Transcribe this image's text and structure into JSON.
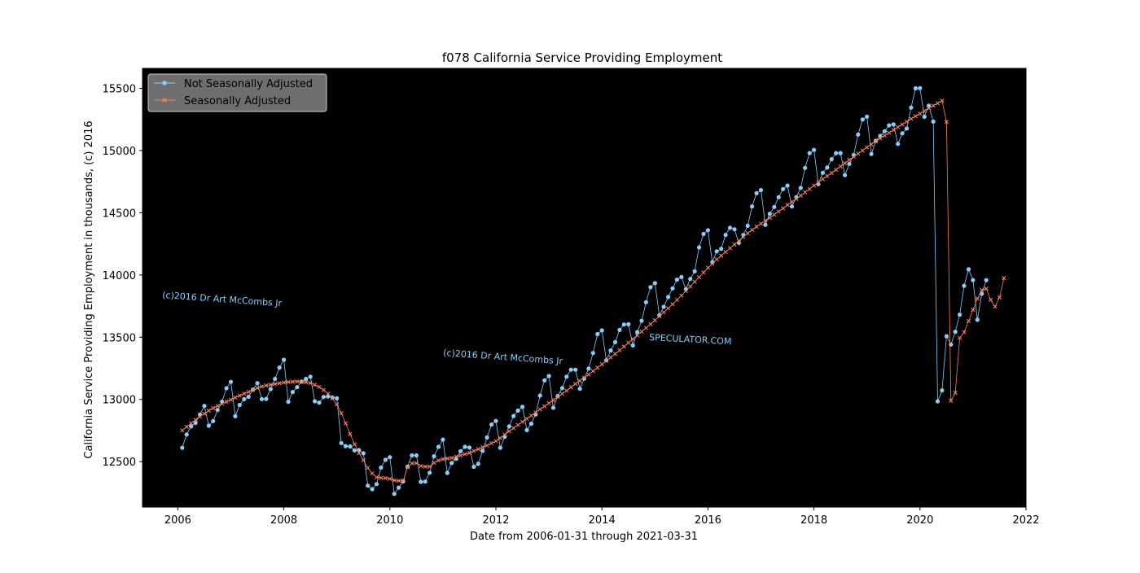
{
  "colors": {
    "plot_background": "#000000",
    "nsa": "#87cefa",
    "sa": "#fa8060",
    "legend_face": "#6e6e6e",
    "watermark": "#87cefa"
  },
  "watermarks": [
    "(c)2016 Dr Art McCombs Jr",
    "(c)2016 Dr Art McCombs Jr",
    "SPECULATOR.COM"
  ],
  "chart_data": {
    "type": "line",
    "title": "f078 California Service Providing Employment",
    "xlabel": "Date from 2006-01-31 through 2021-03-31",
    "ylabel": "California Service Providing Employment in thousands, (c) 2016",
    "x_tick_labels": [
      "2006",
      "2008",
      "2010",
      "2012",
      "2014",
      "2016",
      "2018",
      "2020",
      "2022"
    ],
    "y_tick_labels": [
      "12500",
      "13000",
      "13500",
      "14000",
      "14500",
      "15000",
      "15500"
    ],
    "xlim": [
      "2005-05",
      "2022-01"
    ],
    "ylim": [
      12135,
      15660
    ],
    "grid": false,
    "legend": "top-left",
    "x_start": "2006-01",
    "x_end": "2021-03",
    "series": [
      {
        "name": "Not Seasonally Adjusted",
        "marker": "circle",
        "values": [
          12612,
          12718,
          12784,
          12811,
          12878,
          12948,
          12789,
          12826,
          12915,
          12982,
          13090,
          13141,
          12865,
          12956,
          13002,
          13021,
          13079,
          13131,
          13003,
          13004,
          13083,
          13165,
          13256,
          13319,
          12981,
          13060,
          13098,
          13143,
          13165,
          13183,
          12985,
          12974,
          13020,
          13024,
          13016,
          13009,
          12650,
          12625,
          12622,
          12591,
          12593,
          12567,
          12307,
          12279,
          12320,
          12452,
          12515,
          12536,
          12241,
          12291,
          12341,
          12460,
          12550,
          12550,
          12338,
          12340,
          12411,
          12543,
          12619,
          12677,
          12410,
          12489,
          12523,
          12584,
          12619,
          12614,
          12459,
          12482,
          12587,
          12694,
          12798,
          12827,
          12612,
          12700,
          12783,
          12867,
          12910,
          12940,
          12754,
          12805,
          12880,
          13031,
          13153,
          13188,
          12933,
          13027,
          13091,
          13183,
          13239,
          13239,
          13085,
          13167,
          13248,
          13373,
          13525,
          13554,
          13314,
          13393,
          13460,
          13558,
          13602,
          13604,
          13434,
          13541,
          13632,
          13781,
          13902,
          13935,
          13676,
          13744,
          13823,
          13892,
          13962,
          13983,
          13885,
          13968,
          14029,
          14221,
          14329,
          14360,
          14103,
          14190,
          14210,
          14322,
          14379,
          14367,
          14258,
          14321,
          14395,
          14550,
          14657,
          14682,
          14403,
          14491,
          14546,
          14625,
          14690,
          14718,
          14550,
          14625,
          14699,
          14860,
          14979,
          15005,
          14730,
          14821,
          14863,
          14930,
          14979,
          14979,
          14802,
          14893,
          14964,
          15128,
          15249,
          15272,
          14972,
          15078,
          15117,
          15155,
          15202,
          15210,
          15053,
          15138,
          15177,
          15345,
          15500,
          15501,
          15271,
          15360,
          15232,
          12984,
          13073,
          13508,
          13441,
          13544,
          13681,
          13913,
          14045,
          13958,
          13640,
          13849,
          13958
        ]
      },
      {
        "name": "Seasonally Adjusted",
        "marker": "x",
        "values": [
          12752,
          12780,
          12808,
          12836,
          12862,
          12886,
          12910,
          12930,
          12948,
          12965,
          12982,
          12998,
          13015,
          13030,
          13046,
          13060,
          13076,
          13092,
          13104,
          13112,
          13118,
          13124,
          13130,
          13136,
          13140,
          13142,
          13144,
          13142,
          13138,
          13132,
          13118,
          13100,
          13076,
          13046,
          13008,
          12960,
          12890,
          12808,
          12722,
          12640,
          12570,
          12512,
          12450,
          12406,
          12375,
          12370,
          12368,
          12362,
          12350,
          12346,
          12348,
          12455,
          12486,
          12488,
          12465,
          12460,
          12460,
          12490,
          12510,
          12520,
          12525,
          12530,
          12540,
          12550,
          12560,
          12570,
          12586,
          12600,
          12616,
          12630,
          12648,
          12665,
          12690,
          12718,
          12745,
          12770,
          12795,
          12820,
          12845,
          12870,
          12895,
          12920,
          12945,
          12970,
          12995,
          13020,
          13046,
          13071,
          13098,
          13125,
          13150,
          13175,
          13200,
          13228,
          13255,
          13282,
          13310,
          13338,
          13366,
          13395,
          13425,
          13455,
          13485,
          13515,
          13545,
          13575,
          13605,
          13636,
          13668,
          13700,
          13732,
          13765,
          13800,
          13835,
          13872,
          13908,
          13945,
          13982,
          14020,
          14058,
          14092,
          14125,
          14155,
          14185,
          14215,
          14245,
          14275,
          14305,
          14335,
          14362,
          14388,
          14412,
          14436,
          14460,
          14485,
          14510,
          14535,
          14562,
          14588,
          14612,
          14638,
          14665,
          14690,
          14718,
          14745,
          14770,
          14795,
          14820,
          14845,
          14872,
          14898,
          14925,
          14950,
          14975,
          15000,
          15025,
          15050,
          15075,
          15098,
          15120,
          15142,
          15165,
          15188,
          15210,
          15232,
          15255,
          15276,
          15296,
          15318,
          15340,
          15360,
          15380,
          15400,
          15230,
          12990,
          13053,
          13495,
          13540,
          13630,
          13720,
          13810,
          13880,
          13890,
          13800,
          13745,
          13820,
          13975
        ]
      }
    ]
  }
}
